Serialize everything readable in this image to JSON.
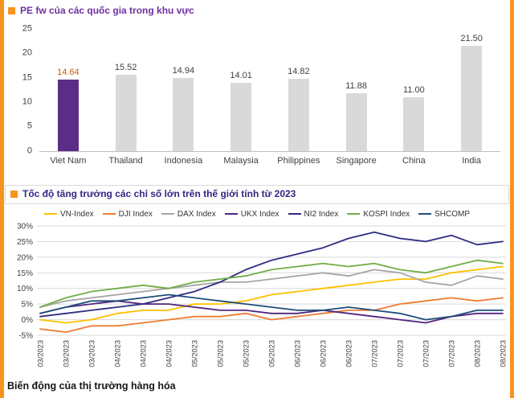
{
  "page": {
    "accent_color": "#F7941D",
    "footer_caption": "Biến động của thị trường hàng hóa"
  },
  "chart_data": [
    {
      "type": "bar",
      "title": "PE fw của các quốc gia trong khu vực",
      "title_color": "#7030A0",
      "categories": [
        "Viet Nam",
        "Thailand",
        "Indonesia",
        "Malaysia",
        "Philippines",
        "Singapore",
        "China",
        "India"
      ],
      "values": [
        14.64,
        15.52,
        14.94,
        14.01,
        14.82,
        11.88,
        11.0,
        21.5
      ],
      "value_labels": [
        "14.64",
        "15.52",
        "14.94",
        "14.01",
        "14.82",
        "11.88",
        "11.00",
        "21.50"
      ],
      "ylim": [
        0,
        25
      ],
      "yticks": [
        0,
        5,
        10,
        15,
        20,
        25
      ],
      "ytick_labels": [
        "0",
        "5",
        "10",
        "15",
        "20",
        "25"
      ],
      "highlight_index": 0,
      "colors": {
        "highlight_bar": "#5B2D86",
        "default_bar": "#D9D9D9",
        "highlight_value": "#C55A11",
        "default_value": "#404040"
      },
      "grid": false,
      "legend_position": "none"
    },
    {
      "type": "line",
      "title": "Tốc độ tăng trưởng các chỉ số lớn trên thế giới tính từ 2023",
      "title_color": "#312783",
      "x": [
        "03/2023",
        "03/2023",
        "03/2023",
        "04/2023",
        "04/2023",
        "04/2023",
        "05/2023",
        "05/2023",
        "05/2023",
        "05/2023",
        "06/2023",
        "06/2023",
        "06/2023",
        "07/2023",
        "07/2023",
        "07/2023",
        "07/2023",
        "08/2023",
        "08/2023"
      ],
      "ylim": [
        -5,
        30
      ],
      "ytick_values": [
        30,
        25,
        20,
        15,
        10,
        5,
        0,
        -5
      ],
      "yticks": [
        "30%",
        "25%",
        "20%",
        "15%",
        "10%",
        "5%",
        "0%",
        "-5%"
      ],
      "grid": true,
      "legend_position": "top",
      "series": [
        {
          "name": "VN-Index",
          "color": "#FFC000",
          "values": [
            0,
            -1,
            0,
            2,
            3,
            3,
            5,
            5,
            6,
            8,
            9,
            10,
            11,
            12,
            13,
            13,
            15,
            16,
            17
          ]
        },
        {
          "name": "DJI Index",
          "color": "#ED7D31",
          "values": [
            -3,
            -4,
            -2,
            -2,
            -1,
            0,
            1,
            1,
            2,
            0,
            1,
            2,
            3,
            3,
            5,
            6,
            7,
            6,
            7
          ]
        },
        {
          "name": "DAX Index",
          "color": "#A5A5A5",
          "values": [
            4,
            6,
            7,
            8,
            9,
            10,
            11,
            12,
            12,
            13,
            14,
            15,
            14,
            16,
            15,
            12,
            11,
            14,
            13
          ]
        },
        {
          "name": "UKX Index",
          "color": "#53257E",
          "values": [
            2,
            4,
            5,
            6,
            5,
            5,
            4,
            3,
            3,
            2,
            2,
            3,
            2,
            1,
            0,
            -1,
            1,
            2,
            2
          ]
        },
        {
          "name": "NI2 Index",
          "color": "#2F2C83",
          "values": [
            1,
            2,
            3,
            4,
            5,
            7,
            9,
            12,
            16,
            19,
            21,
            23,
            26,
            28,
            26,
            25,
            27,
            24,
            25
          ]
        },
        {
          "name": "KOSPI Index",
          "color": "#70AD47",
          "values": [
            4,
            7,
            9,
            10,
            11,
            10,
            12,
            13,
            14,
            16,
            17,
            18,
            17,
            18,
            16,
            15,
            17,
            19,
            18
          ]
        },
        {
          "name": "SHCOMP",
          "color": "#1F4E79",
          "values": [
            2,
            4,
            6,
            6,
            7,
            8,
            7,
            6,
            5,
            4,
            3,
            3,
            4,
            3,
            2,
            0,
            1,
            3,
            3
          ]
        }
      ]
    }
  ]
}
